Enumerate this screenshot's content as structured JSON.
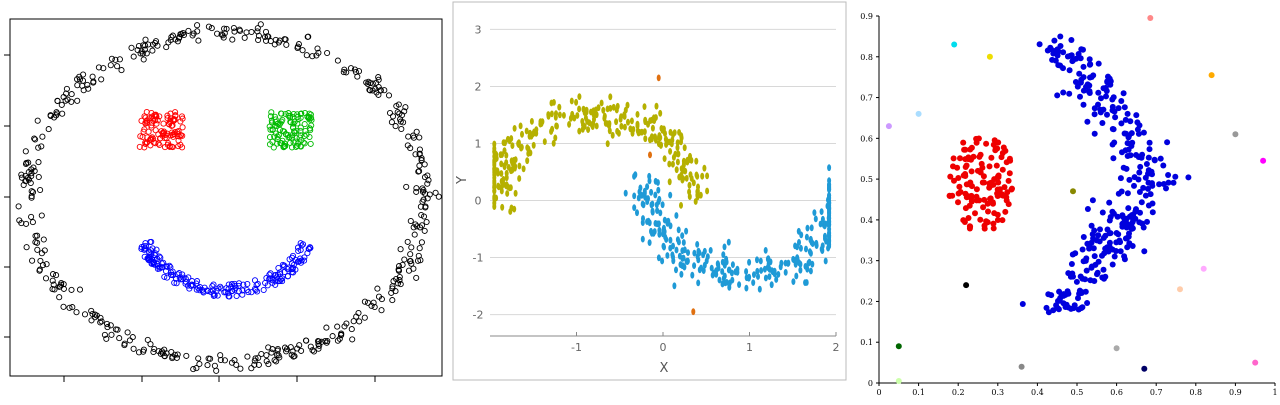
{
  "chart_data": [
    {
      "type": "scatter",
      "title": "",
      "xlabel": "",
      "ylabel": "",
      "xlim": [
        0,
        10
      ],
      "ylim": [
        0,
        10
      ],
      "grid": false,
      "series": [
        {
          "kind": "ring",
          "center": [
            5,
            5
          ],
          "radius": 4.6,
          "count": 460,
          "color": "#000000",
          "marker": "open-circle"
        },
        {
          "kind": "box",
          "x": [
            3.0,
            4.0
          ],
          "y": [
            6.4,
            7.4
          ],
          "count": 110,
          "color": "#ff0000",
          "marker": "open-circle"
        },
        {
          "kind": "box",
          "x": [
            6.0,
            7.0
          ],
          "y": [
            6.4,
            7.4
          ],
          "count": 110,
          "color": "#00bb00",
          "marker": "open-circle"
        },
        {
          "kind": "arc",
          "center": [
            5,
            4.4
          ],
          "radius": 2.0,
          "thickness": 0.35,
          "angle_range": [
            200,
            340
          ],
          "count": 200,
          "color": "#0000ff",
          "marker": "open-circle"
        }
      ]
    },
    {
      "type": "scatter",
      "title": "",
      "xlabel": "X",
      "ylabel": "Y",
      "xlim": [
        -2.0,
        2.0
      ],
      "ylim": [
        -2.2,
        3.2
      ],
      "xticks": [
        -1,
        0,
        1,
        2
      ],
      "yticks": [
        -2,
        -1,
        0,
        1,
        2,
        3
      ],
      "grid": true,
      "series": [
        {
          "kind": "moon-upper",
          "center": [
            0,
            0
          ],
          "count": 300,
          "color": "#b5b000"
        },
        {
          "kind": "moon-lower",
          "center": [
            1,
            0.5
          ],
          "count": 300,
          "color": "#1f9ad6"
        },
        {
          "kind": "points",
          "color": "#e07010",
          "points": [
            [
              -0.05,
              2.15
            ],
            [
              -0.15,
              0.8
            ],
            [
              0.35,
              -1.95
            ]
          ]
        }
      ]
    },
    {
      "type": "scatter",
      "title": "",
      "xlabel": "",
      "ylabel": "",
      "xlim": [
        0,
        1
      ],
      "ylim": [
        0,
        0.9
      ],
      "xticks": [
        "0",
        "0.1",
        "0.2",
        "0.3",
        "0.4",
        "0.5",
        "0.6",
        "0.7",
        "0.8",
        "0.9",
        "1"
      ],
      "yticks": [
        "0",
        "0.1",
        "0.2",
        "0.3",
        "0.4",
        "0.5",
        "0.6",
        "0.7",
        "0.8",
        "0.9"
      ],
      "grid": false,
      "series": [
        {
          "kind": "blob",
          "center": [
            0.26,
            0.49
          ],
          "radius": [
            0.085,
            0.12
          ],
          "count": 130,
          "color": "#ee0000"
        },
        {
          "kind": "s-band",
          "count": 320,
          "color": "#0000dd"
        },
        {
          "kind": "noise",
          "points": [
            {
              "x": 0.685,
              "y": 0.895,
              "color": "#ff8888"
            },
            {
              "x": 0.19,
              "y": 0.83,
              "color": "#00ddee"
            },
            {
              "x": 0.28,
              "y": 0.8,
              "color": "#eedd00"
            },
            {
              "x": 0.84,
              "y": 0.755,
              "color": "#ffaa00"
            },
            {
              "x": 0.1,
              "y": 0.66,
              "color": "#aaddff"
            },
            {
              "x": 0.025,
              "y": 0.63,
              "color": "#cc99ff"
            },
            {
              "x": 0.9,
              "y": 0.61,
              "color": "#999999"
            },
            {
              "x": 0.97,
              "y": 0.545,
              "color": "#ff00ff"
            },
            {
              "x": 0.49,
              "y": 0.47,
              "color": "#888800"
            },
            {
              "x": 0.22,
              "y": 0.24,
              "color": "#000000"
            },
            {
              "x": 0.82,
              "y": 0.28,
              "color": "#ffaaff"
            },
            {
              "x": 0.76,
              "y": 0.23,
              "color": "#ffccaa"
            },
            {
              "x": 0.05,
              "y": 0.09,
              "color": "#006600"
            },
            {
              "x": 0.6,
              "y": 0.085,
              "color": "#aaaaaa"
            },
            {
              "x": 0.36,
              "y": 0.04,
              "color": "#888888"
            },
            {
              "x": 0.67,
              "y": 0.035,
              "color": "#000066"
            },
            {
              "x": 0.95,
              "y": 0.05,
              "color": "#ff66cc"
            },
            {
              "x": 0.05,
              "y": 0.005,
              "color": "#ccffaa"
            }
          ]
        }
      ]
    }
  ]
}
